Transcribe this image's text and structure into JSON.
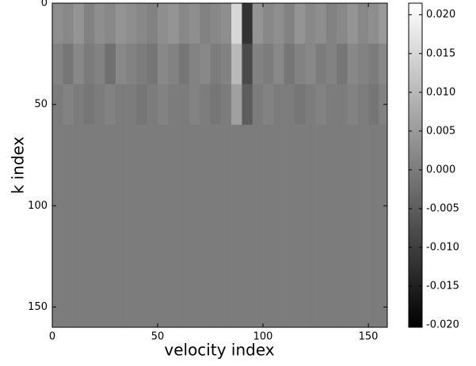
{
  "chart_data": {
    "type": "heatmap",
    "xlabel": "velocity index",
    "ylabel": "k index",
    "colormap": "gray",
    "x_edges": [
      0,
      5,
      10,
      15,
      20,
      25,
      30,
      35,
      40,
      45,
      50,
      55,
      60,
      65,
      70,
      75,
      80,
      85,
      90,
      95,
      100,
      105,
      110,
      115,
      120,
      125,
      130,
      135,
      140,
      145,
      150,
      155,
      159
    ],
    "y_edges": [
      0,
      20,
      40,
      60,
      160
    ],
    "values": [
      [
        0.003,
        0.002,
        0.004,
        0.001,
        0.003,
        0.002,
        0.004,
        0.003,
        0.002,
        0.001,
        0.003,
        0.004,
        0.002,
        0.003,
        0.001,
        0.002,
        0.003,
        0.015,
        -0.012,
        0.004,
        0.002,
        0.003,
        0.001,
        0.004,
        0.002,
        0.003,
        0.001,
        0.002,
        0.004,
        0.002,
        0.003,
        0.005
      ],
      [
        0.001,
        -0.001,
        0.002,
        0.0,
        0.001,
        -0.002,
        0.002,
        0.001,
        0.0,
        -0.001,
        0.002,
        0.001,
        -0.001,
        0.001,
        0.002,
        0.0,
        0.001,
        0.01,
        -0.008,
        0.001,
        0.0,
        0.002,
        -0.001,
        0.001,
        0.002,
        0.0,
        0.001,
        -0.001,
        0.002,
        0.001,
        0.0,
        0.002
      ],
      [
        0.0,
        0.001,
        0.0,
        -0.001,
        0.0,
        0.001,
        0.0,
        0.0,
        -0.001,
        0.0,
        0.001,
        0.0,
        0.0,
        0.001,
        0.0,
        -0.001,
        0.0,
        0.006,
        -0.005,
        0.0,
        0.001,
        0.0,
        0.0,
        -0.001,
        0.0,
        0.001,
        0.0,
        0.0,
        0.001,
        0.0,
        -0.001,
        0.001
      ],
      [
        0.0,
        0.0,
        0.0,
        0.0,
        0.0,
        0.0,
        0.0,
        0.0,
        0.0,
        0.0,
        0.0,
        0.0,
        0.0,
        0.0,
        0.0,
        0.0,
        0.0,
        0.0,
        0.0,
        0.0,
        0.0,
        0.0,
        0.0,
        0.0,
        0.0,
        0.0,
        0.0,
        0.0,
        0.0,
        0.0,
        0.0,
        0.0
      ]
    ],
    "xlim": [
      0,
      159
    ],
    "ylim": [
      160,
      0
    ],
    "xticks": [
      0,
      50,
      100,
      150
    ],
    "yticks": [
      0,
      50,
      100,
      150
    ],
    "clim": [
      -0.0203,
      0.0215
    ],
    "cticks": [
      {
        "value": 0.02,
        "label": "0.020"
      },
      {
        "value": 0.015,
        "label": "0.015"
      },
      {
        "value": 0.01,
        "label": "0.010"
      },
      {
        "value": 0.005,
        "label": "0.005"
      },
      {
        "value": 0,
        "label": "0.000"
      },
      {
        "value": -0.005,
        "label": "-0.005"
      },
      {
        "value": -0.01,
        "label": "-0.010"
      },
      {
        "value": -0.015,
        "label": "-0.015"
      },
      {
        "value": -0.02,
        "label": "-0.020"
      }
    ]
  }
}
